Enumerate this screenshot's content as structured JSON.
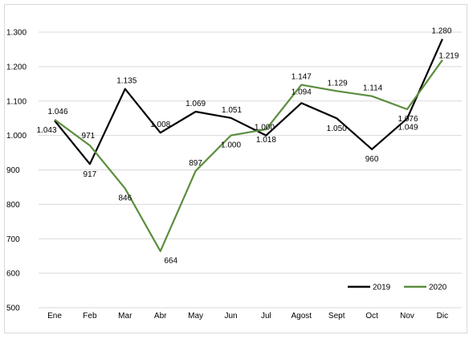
{
  "chart_data": {
    "type": "line",
    "categories": [
      "Ene",
      "Feb",
      "Mar",
      "Abr",
      "May",
      "Jun",
      "Jul",
      "Agost",
      "Sept",
      "Oct",
      "Nov",
      "Dic"
    ],
    "series": [
      {
        "name": "2019",
        "color": "#000000",
        "values": [
          1043,
          917,
          1135,
          1008,
          1069,
          1051,
          1000,
          1094,
          1050,
          960,
          1049,
          1280
        ],
        "labels": [
          "1.043",
          "917",
          "1.135",
          "1.008",
          "1.069",
          "1.051",
          "1.000",
          "1.094",
          "1.050",
          "960",
          "1.049",
          "1.280"
        ]
      },
      {
        "name": "2020",
        "color": "#5b8e3e",
        "values": [
          1046,
          971,
          846,
          664,
          897,
          1000,
          1018,
          1147,
          1129,
          1114,
          1076,
          1219
        ],
        "labels": [
          "1.046",
          "971",
          "846",
          "664",
          "897",
          "1.000",
          "1.018",
          "1.147",
          "1.129",
          "1.114",
          "1.076",
          "1.219"
        ]
      }
    ],
    "y_ticks": [
      500,
      600,
      700,
      800,
      900,
      1000,
      1100,
      1200,
      1300
    ],
    "y_tick_labels": [
      "500",
      "600",
      "700",
      "800",
      "900",
      "1.000",
      "1.100",
      "1.200",
      "1.300"
    ],
    "ylim": [
      500,
      1300
    ],
    "grid": true,
    "legend": "bottom-right",
    "title": "",
    "xlabel": "",
    "ylabel": ""
  }
}
